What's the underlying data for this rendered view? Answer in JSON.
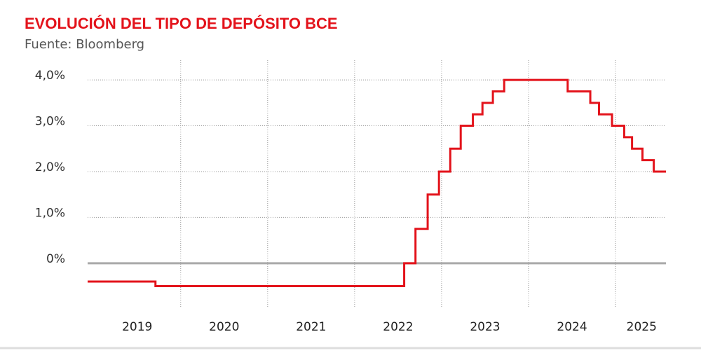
{
  "chart_data": {
    "type": "step",
    "title": "EVOLUCIÓN DEL TIPO DE DEPÓSITO BCE",
    "subtitle": "Fuente: Bloomberg",
    "x": [
      2018.93,
      2019.71,
      2022.57,
      2022.7,
      2022.84,
      2022.97,
      2023.1,
      2023.22,
      2023.36,
      2023.47,
      2023.59,
      2023.72,
      2024.45,
      2024.71,
      2024.81,
      2024.96,
      2025.1,
      2025.19,
      2025.31,
      2025.44,
      2025.58
    ],
    "series": [
      {
        "name": "Tipo de depósito BCE",
        "color": "#e3131b",
        "values": [
          -0.4,
          -0.5,
          0,
          0.75,
          1.5,
          2.0,
          2.5,
          3.0,
          3.25,
          3.5,
          3.75,
          4.0,
          3.75,
          3.5,
          3.25,
          3.0,
          2.75,
          2.5,
          2.25,
          2.0,
          2.0
        ]
      }
    ],
    "xlim": [
      2018.93,
      2025.58
    ],
    "xticks": [
      {
        "value": 2019.5,
        "label": "2019"
      },
      {
        "value": 2020.5,
        "label": "2020"
      },
      {
        "value": 2021.5,
        "label": "2021"
      },
      {
        "value": 2022.5,
        "label": "2022"
      },
      {
        "value": 2023.5,
        "label": "2023"
      },
      {
        "value": 2024.5,
        "label": "2024"
      },
      {
        "value": 2025.3,
        "label": "2025"
      }
    ],
    "xgrid": [
      2020,
      2021,
      2022,
      2023,
      2024,
      2025
    ],
    "ylim": [
      -0.95,
      4.43
    ],
    "yticks": [
      {
        "value": 0,
        "label": "0%"
      },
      {
        "value": 1,
        "label": "1,0%"
      },
      {
        "value": 2,
        "label": "2,0%"
      },
      {
        "value": 3,
        "label": "3,0%"
      },
      {
        "value": 4,
        "label": "4,0%"
      }
    ],
    "grid": true
  }
}
